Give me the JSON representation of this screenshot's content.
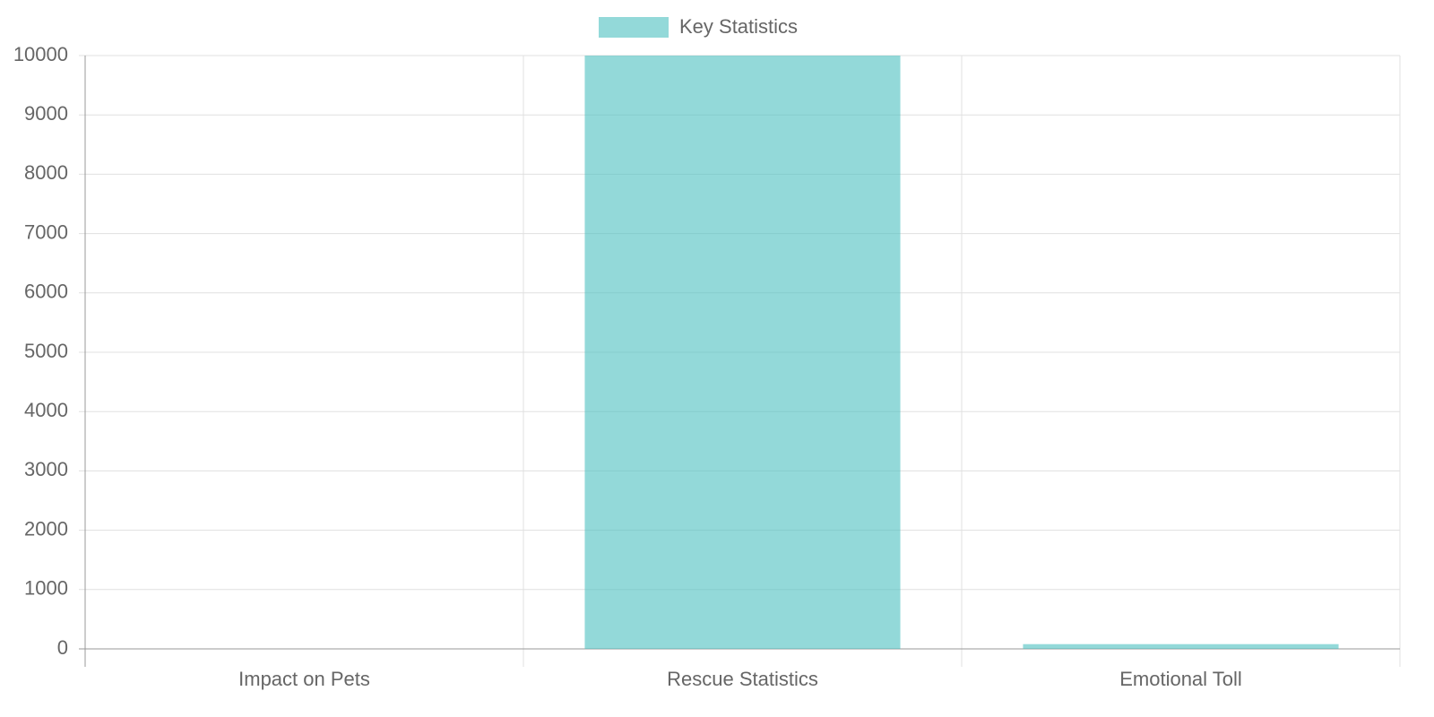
{
  "chart_data": {
    "type": "bar",
    "categories": [
      "Impact on Pets",
      "Rescue Statistics",
      "Emotional Toll"
    ],
    "series": [
      {
        "name": "Key Statistics",
        "color": "rgba(75,192,192,0.6)",
        "values": [
          0,
          10000,
          80
        ]
      }
    ],
    "ylim": [
      0,
      10000
    ],
    "yticks": [
      0,
      1000,
      2000,
      3000,
      4000,
      5000,
      6000,
      7000,
      8000,
      9000,
      10000
    ],
    "grid": true,
    "legend": "top"
  }
}
